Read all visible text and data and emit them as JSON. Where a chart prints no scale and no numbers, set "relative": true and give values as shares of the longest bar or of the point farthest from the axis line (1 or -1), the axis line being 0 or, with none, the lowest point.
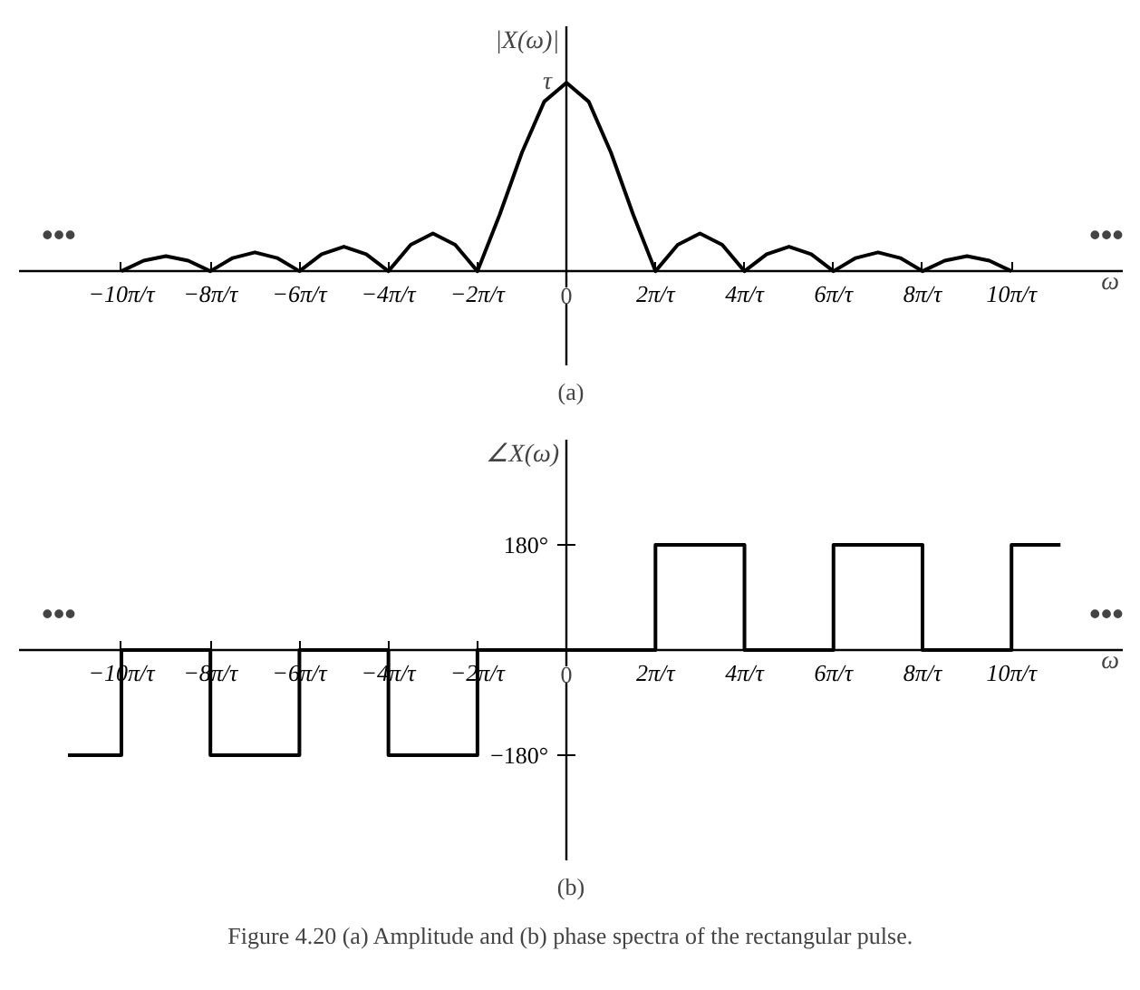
{
  "chart_data": [
    {
      "type": "line",
      "title": "(a)",
      "xlabel": "ω",
      "ylabel": "|X(ω)|",
      "relative": true,
      "color": "#000000",
      "x": [
        -10,
        -9.5,
        -9,
        -8.5,
        -8,
        -7.5,
        -7,
        -6.5,
        -6,
        -5.5,
        -5,
        -4.5,
        -4,
        -3.5,
        -3,
        -2.5,
        -2,
        -1.5,
        -1,
        -0.5,
        0,
        0.5,
        1,
        1.5,
        2,
        2.5,
        3,
        3.5,
        4,
        4.5,
        5,
        5.5,
        6,
        6.5,
        7,
        7.5,
        8,
        8.5,
        9,
        9.5,
        10
      ],
      "values": [
        0,
        0.056,
        0.08,
        0.056,
        0,
        0.07,
        0.1,
        0.07,
        0,
        0.09,
        0.13,
        0.09,
        0,
        0.14,
        0.2,
        0.14,
        0,
        0.3,
        0.63,
        0.9,
        1,
        0.9,
        0.63,
        0.3,
        0,
        0.14,
        0.2,
        0.14,
        0,
        0.09,
        0.13,
        0.09,
        0,
        0.07,
        0.1,
        0.07,
        0,
        0.056,
        0.08,
        0.056,
        0
      ],
      "xlim": [
        -12.3,
        12.5
      ],
      "xticks": [
        {
          "value": -10,
          "label": "−10π/τ"
        },
        {
          "value": -8,
          "label": "−8π/τ"
        },
        {
          "value": -6,
          "label": "−6π/τ"
        },
        {
          "value": -4,
          "label": "−4π/τ"
        },
        {
          "value": -2,
          "label": "−2π/τ"
        },
        0,
        {
          "value": 2,
          "label": "2π/τ"
        },
        {
          "value": 4,
          "label": "4π/τ"
        },
        {
          "value": 6,
          "label": "6π/τ"
        },
        {
          "value": 8,
          "label": "8π/τ"
        },
        {
          "value": 10,
          "label": "10π/τ"
        }
      ],
      "annotations": [
        {
          "text": "τ",
          "x": 0,
          "y": 1
        },
        "•••",
        "•••"
      ]
    },
    {
      "type": "step",
      "title": "(b)",
      "xlabel": "ω",
      "ylabel": "∠X(ω)",
      "color": "#000000",
      "x": [
        -11.2,
        -10,
        -8,
        -6,
        -4,
        -2,
        2,
        4,
        6,
        8,
        10,
        11.1
      ],
      "values": [
        -180,
        0,
        -180,
        0,
        -180,
        0,
        180,
        0,
        180,
        0,
        180,
        180
      ],
      "xlim": [
        -12.3,
        12.5
      ],
      "ylim": [
        -360,
        360
      ],
      "xticks": [
        {
          "value": -10,
          "label": "−10π/τ"
        },
        {
          "value": -8,
          "label": "−8π/τ"
        },
        {
          "value": -6,
          "label": "−6π/τ"
        },
        {
          "value": -4,
          "label": "−4π/τ"
        },
        {
          "value": -2,
          "label": "−2π/τ"
        },
        0,
        {
          "value": 2,
          "label": "2π/τ"
        },
        {
          "value": 4,
          "label": "4π/τ"
        },
        {
          "value": 6,
          "label": "6π/τ"
        },
        {
          "value": 8,
          "label": "8π/τ"
        },
        {
          "value": 10,
          "label": "10π/τ"
        }
      ],
      "yticks": [
        {
          "value": 180,
          "label": "180°"
        },
        {
          "value": -180,
          "label": "−180°"
        }
      ],
      "annotations": [
        "•••",
        "•••",
        "Figure 4.20 (a) Amplitude and (b) phase spectra of the rectangular pulse."
      ]
    }
  ]
}
